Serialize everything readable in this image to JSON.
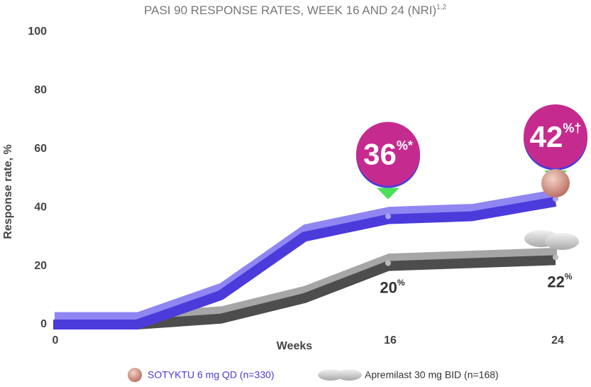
{
  "chart_data": {
    "type": "line",
    "title": "PASI 90 RESPONSE RATES, WEEK 16 AND 24 (NRI)",
    "title_refs": "1,2",
    "x_label": "Weeks",
    "y_label": "Response rate, %",
    "x": [
      0,
      4,
      8,
      12,
      16,
      20,
      24
    ],
    "xlim": [
      0,
      24
    ],
    "xticks": [
      0,
      16,
      24
    ],
    "ylim": [
      0,
      100
    ],
    "yticks": [
      0,
      20,
      40,
      60,
      80,
      100
    ],
    "legend": "bottom",
    "series": [
      {
        "name": "SOTYKTU 6 mg QD (n=330)",
        "color": "#4b3bdb",
        "values": [
          0,
          0,
          10,
          30,
          36,
          37,
          42
        ],
        "value_labels": [
          null,
          null,
          null,
          null,
          "36%*",
          null,
          "42%†"
        ]
      },
      {
        "name": "Apremilast 30 mg BID (n=168)",
        "color": "#4d4d4d",
        "values": [
          0,
          0,
          2,
          9,
          20,
          21,
          22
        ],
        "value_labels": [
          null,
          null,
          null,
          null,
          "20%",
          null,
          "22%"
        ]
      }
    ]
  }
}
